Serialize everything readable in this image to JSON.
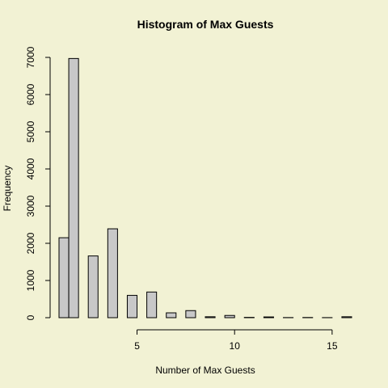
{
  "chart_data": {
    "type": "bar",
    "title": "Histogram of Max Guests",
    "xlabel": "Number of Max Guests",
    "ylabel": "Frequency",
    "bin_width": 1,
    "x_range": [
      1,
      16
    ],
    "x_ticks": [
      5,
      10,
      15
    ],
    "y_range": [
      0,
      7000
    ],
    "y_ticks": [
      0,
      1000,
      2000,
      3000,
      4000,
      5000,
      6000,
      7000
    ],
    "bins": [
      {
        "start": 1,
        "end": 1.5,
        "count": 2150
      },
      {
        "start": 1.5,
        "end": 2,
        "count": 6970
      },
      {
        "start": 2.5,
        "end": 3,
        "count": 1660
      },
      {
        "start": 3.5,
        "end": 4,
        "count": 2390
      },
      {
        "start": 4.5,
        "end": 5,
        "count": 600
      },
      {
        "start": 5.5,
        "end": 6,
        "count": 690
      },
      {
        "start": 6.5,
        "end": 7,
        "count": 130
      },
      {
        "start": 7.5,
        "end": 8,
        "count": 190
      },
      {
        "start": 8.5,
        "end": 9,
        "count": 25
      },
      {
        "start": 9.5,
        "end": 10,
        "count": 60
      },
      {
        "start": 10.5,
        "end": 11,
        "count": 8
      },
      {
        "start": 11.5,
        "end": 12,
        "count": 20
      },
      {
        "start": 12.5,
        "end": 13,
        "count": 3
      },
      {
        "start": 13.5,
        "end": 14,
        "count": 5
      },
      {
        "start": 14.5,
        "end": 15,
        "count": 2
      },
      {
        "start": 15.5,
        "end": 16,
        "count": 25
      }
    ],
    "grid": false,
    "background_color": "#f2f2d4",
    "bar_color": "#c8c8c8"
  }
}
